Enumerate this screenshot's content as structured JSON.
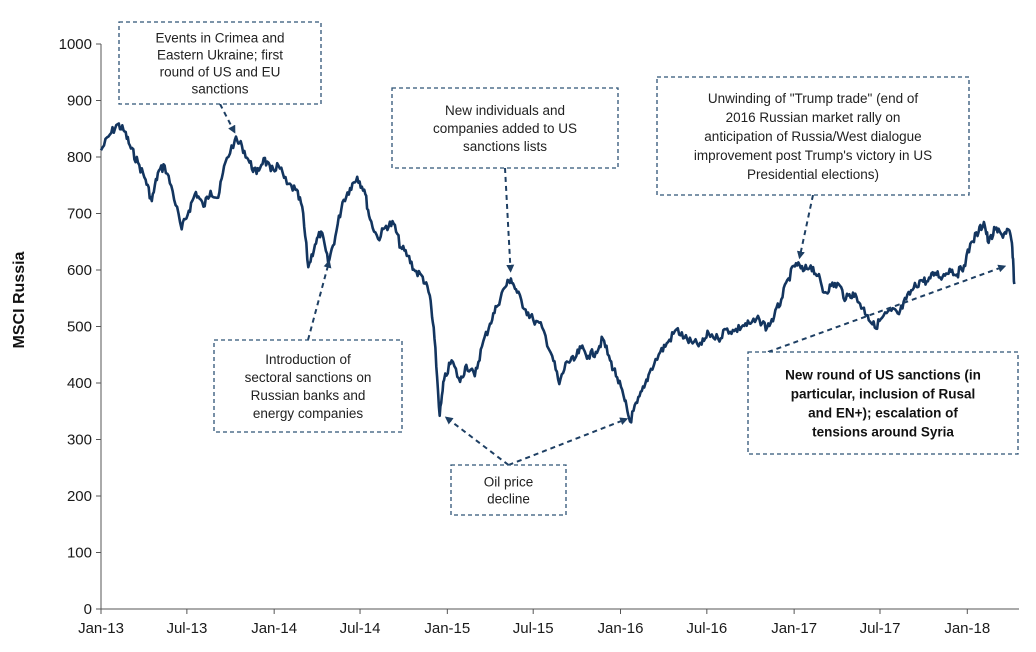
{
  "chart_data": {
    "type": "line",
    "title": "",
    "xlabel": "",
    "ylabel": "MSCI Russia",
    "ylim": [
      0,
      1000
    ],
    "yticks": [
      0,
      100,
      200,
      300,
      400,
      500,
      600,
      700,
      800,
      900,
      1000
    ],
    "xticks": [
      "Jan-13",
      "Jul-13",
      "Jan-14",
      "Jul-14",
      "Jan-15",
      "Jul-15",
      "Jan-16",
      "Jul-16",
      "Jan-17",
      "Jul-17",
      "Jan-18"
    ],
    "grid": false,
    "series": [
      {
        "name": "",
        "color": "#13355f",
        "points": [
          [
            "2013-01-01",
            812
          ],
          [
            "2013-01-20",
            840
          ],
          [
            "2013-02-05",
            858
          ],
          [
            "2013-02-20",
            845
          ],
          [
            "2013-03-05",
            815
          ],
          [
            "2013-03-20",
            790
          ],
          [
            "2013-04-05",
            760
          ],
          [
            "2013-04-18",
            722
          ],
          [
            "2013-05-01",
            772
          ],
          [
            "2013-05-15",
            785
          ],
          [
            "2013-06-01",
            740
          ],
          [
            "2013-06-20",
            672
          ],
          [
            "2013-07-05",
            705
          ],
          [
            "2013-07-20",
            738
          ],
          [
            "2013-08-05",
            712
          ],
          [
            "2013-08-20",
            740
          ],
          [
            "2013-09-05",
            728
          ],
          [
            "2013-09-20",
            790
          ],
          [
            "2013-10-10",
            830
          ],
          [
            "2013-10-25",
            820
          ],
          [
            "2013-11-10",
            790
          ],
          [
            "2013-11-25",
            770
          ],
          [
            "2013-12-10",
            798
          ],
          [
            "2013-12-25",
            775
          ],
          [
            "2014-01-10",
            785
          ],
          [
            "2014-01-28",
            752
          ],
          [
            "2014-02-15",
            742
          ],
          [
            "2014-03-01",
            712
          ],
          [
            "2014-03-14",
            605
          ],
          [
            "2014-03-28",
            645
          ],
          [
            "2014-04-10",
            668
          ],
          [
            "2014-04-25",
            612
          ],
          [
            "2014-05-10",
            660
          ],
          [
            "2014-05-25",
            720
          ],
          [
            "2014-06-10",
            745
          ],
          [
            "2014-06-25",
            765
          ],
          [
            "2014-07-10",
            742
          ],
          [
            "2014-07-22",
            690
          ],
          [
            "2014-08-08",
            655
          ],
          [
            "2014-08-25",
            678
          ],
          [
            "2014-09-10",
            682
          ],
          [
            "2014-09-25",
            640
          ],
          [
            "2014-10-10",
            625
          ],
          [
            "2014-10-25",
            598
          ],
          [
            "2014-11-10",
            588
          ],
          [
            "2014-11-25",
            555
          ],
          [
            "2014-12-05",
            478
          ],
          [
            "2014-12-16",
            342
          ],
          [
            "2014-12-25",
            405
          ],
          [
            "2015-01-10",
            440
          ],
          [
            "2015-01-28",
            402
          ],
          [
            "2015-02-10",
            432
          ],
          [
            "2015-02-28",
            412
          ],
          [
            "2015-03-15",
            465
          ],
          [
            "2015-04-01",
            505
          ],
          [
            "2015-04-15",
            535
          ],
          [
            "2015-05-01",
            568
          ],
          [
            "2015-05-15",
            585
          ],
          [
            "2015-05-28",
            560
          ],
          [
            "2015-06-15",
            530
          ],
          [
            "2015-07-01",
            512
          ],
          [
            "2015-07-20",
            498
          ],
          [
            "2015-08-10",
            448
          ],
          [
            "2015-08-25",
            398
          ],
          [
            "2015-09-10",
            438
          ],
          [
            "2015-09-25",
            440
          ],
          [
            "2015-10-10",
            462
          ],
          [
            "2015-10-25",
            448
          ],
          [
            "2015-11-10",
            455
          ],
          [
            "2015-11-25",
            478
          ],
          [
            "2015-12-10",
            440
          ],
          [
            "2015-12-25",
            410
          ],
          [
            "2016-01-10",
            368
          ],
          [
            "2016-01-21",
            332
          ],
          [
            "2016-02-05",
            365
          ],
          [
            "2016-02-20",
            392
          ],
          [
            "2016-03-05",
            425
          ],
          [
            "2016-03-25",
            455
          ],
          [
            "2016-04-10",
            472
          ],
          [
            "2016-04-28",
            495
          ],
          [
            "2016-05-15",
            480
          ],
          [
            "2016-06-01",
            470
          ],
          [
            "2016-06-20",
            468
          ],
          [
            "2016-07-05",
            488
          ],
          [
            "2016-07-25",
            478
          ],
          [
            "2016-08-10",
            495
          ],
          [
            "2016-08-28",
            492
          ],
          [
            "2016-09-15",
            502
          ],
          [
            "2016-10-01",
            505
          ],
          [
            "2016-10-20",
            512
          ],
          [
            "2016-11-05",
            498
          ],
          [
            "2016-11-20",
            518
          ],
          [
            "2016-12-05",
            548
          ],
          [
            "2016-12-20",
            585
          ],
          [
            "2017-01-05",
            612
          ],
          [
            "2017-01-20",
            598
          ],
          [
            "2017-02-05",
            608
          ],
          [
            "2017-02-20",
            590
          ],
          [
            "2017-03-05",
            560
          ],
          [
            "2017-03-20",
            572
          ],
          [
            "2017-04-05",
            575
          ],
          [
            "2017-04-20",
            548
          ],
          [
            "2017-05-05",
            560
          ],
          [
            "2017-05-20",
            540
          ],
          [
            "2017-06-05",
            520
          ],
          [
            "2017-06-20",
            498
          ],
          [
            "2017-07-05",
            515
          ],
          [
            "2017-07-25",
            528
          ],
          [
            "2017-08-10",
            522
          ],
          [
            "2017-08-25",
            548
          ],
          [
            "2017-09-10",
            568
          ],
          [
            "2017-09-25",
            582
          ],
          [
            "2017-10-10",
            580
          ],
          [
            "2017-10-25",
            595
          ],
          [
            "2017-11-10",
            588
          ],
          [
            "2017-11-25",
            602
          ],
          [
            "2017-12-10",
            592
          ],
          [
            "2017-12-25",
            608
          ],
          [
            "2018-01-10",
            650
          ],
          [
            "2018-01-25",
            668
          ],
          [
            "2018-02-05",
            685
          ],
          [
            "2018-02-15",
            648
          ],
          [
            "2018-03-01",
            672
          ],
          [
            "2018-03-15",
            662
          ],
          [
            "2018-03-28",
            672
          ],
          [
            "2018-04-05",
            648
          ],
          [
            "2018-04-10",
            575
          ]
        ]
      }
    ],
    "annotations": [
      {
        "id": "crimea",
        "lines": [
          "Events in Crimea and",
          "Eastern Ukraine; first",
          "round of US and EU",
          "sanctions"
        ],
        "bold": false,
        "arrow_to": [
          "2013-10-15",
          835
        ]
      },
      {
        "id": "sectoral",
        "lines": [
          "Introduction of",
          "sectoral sanctions on",
          "Russian banks and",
          "energy companies"
        ],
        "bold": false,
        "arrow_to": [
          "2014-04-30",
          625
        ]
      },
      {
        "id": "new-individuals",
        "lines": [
          "New individuals and",
          "companies added to US",
          "sanctions lists"
        ],
        "bold": false,
        "arrow_to": [
          "2015-05-15",
          588
        ]
      },
      {
        "id": "trump",
        "lines": [
          "Unwinding of \"Trump trade\" (end of",
          "2016 Russian market rally on",
          "anticipation of Russia/West dialogue",
          "improvement post Trump's victory in US",
          "Presidential elections)"
        ],
        "bold": false,
        "arrow_to": [
          "2017-01-10",
          612
        ]
      },
      {
        "id": "oil",
        "lines": [
          "Oil price",
          "decline"
        ],
        "bold": false,
        "arrow_to": [
          [
            "2014-12-20",
            345
          ],
          [
            "2016-01-25",
            340
          ]
        ]
      },
      {
        "id": "new-round",
        "lines": [
          "New round of US sanctions (in",
          "particular, inclusion of Rusal",
          "and EN+); escalation of",
          "tensions around Syria"
        ],
        "bold": true,
        "arrow_to": [
          "2018-04-01",
          610
        ]
      }
    ]
  }
}
